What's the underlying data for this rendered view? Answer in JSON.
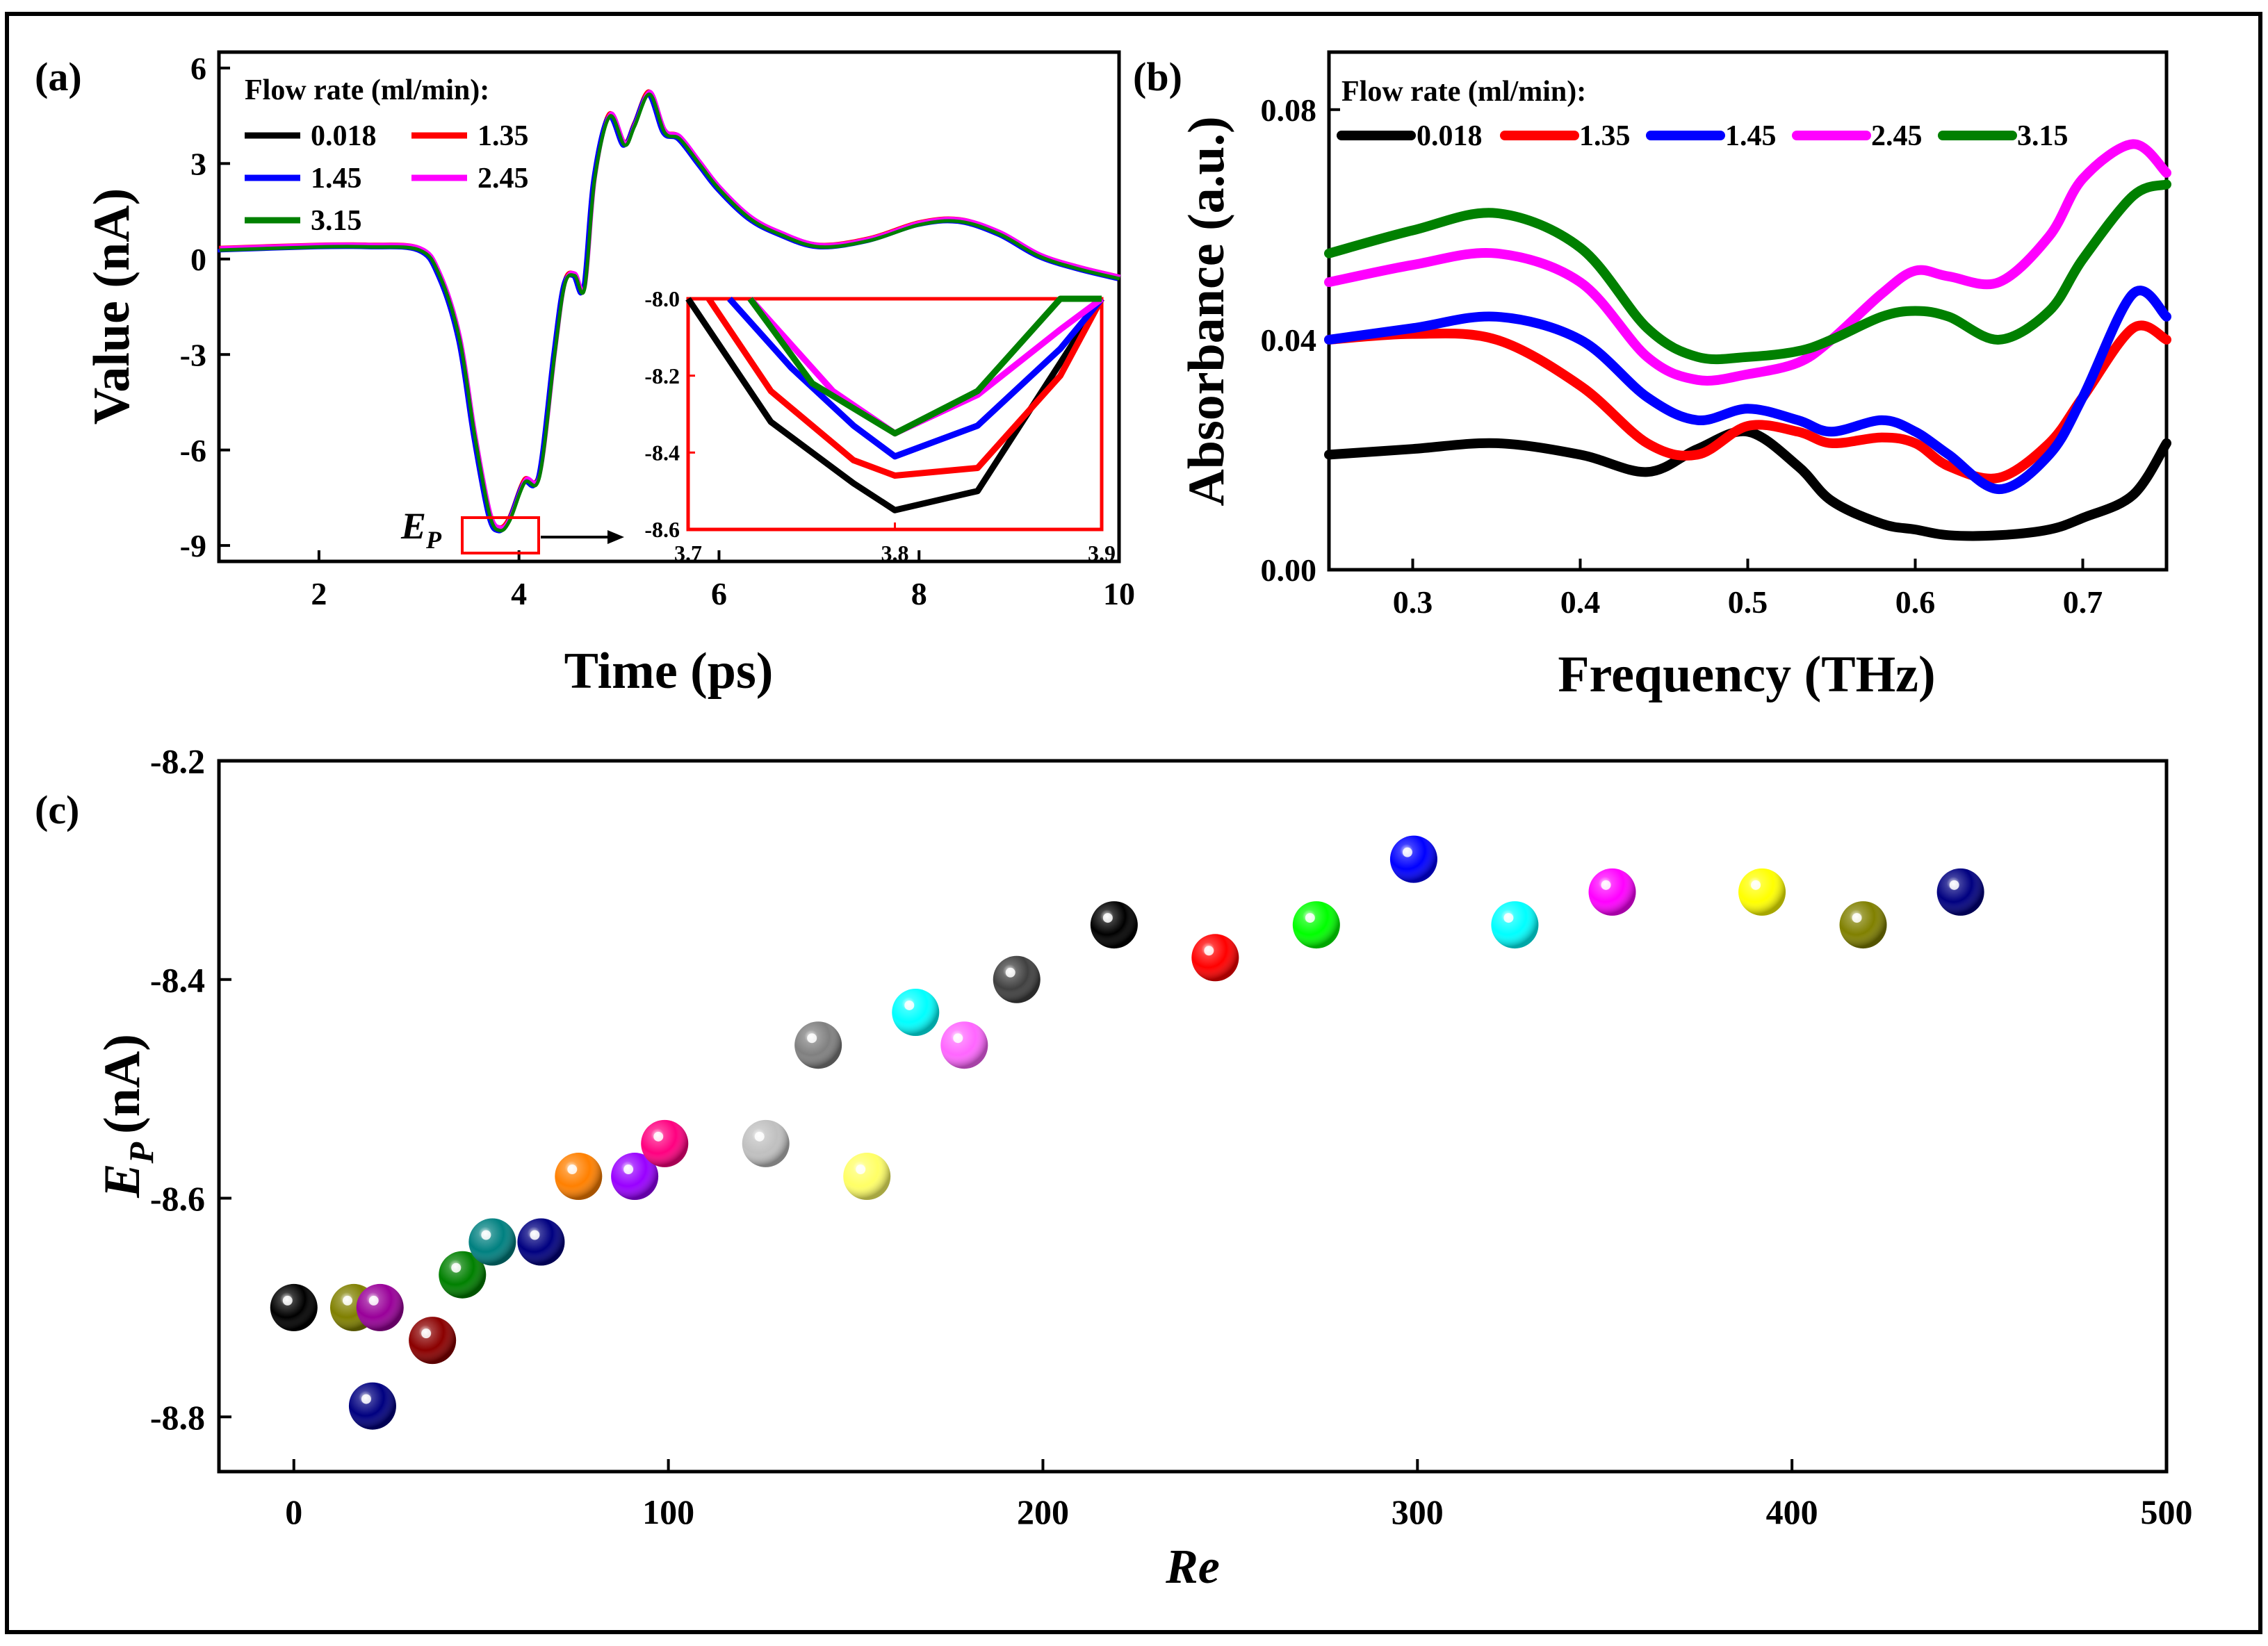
{
  "chart_data": [
    {
      "panel": "(a)",
      "type": "line",
      "xlabel": "Time (ps)",
      "ylabel": "Value (nA)",
      "xlim": [
        1,
        10
      ],
      "ylim": [
        -9.5,
        6.5
      ],
      "xticks": [
        2,
        4,
        6,
        8,
        10
      ],
      "yticks": [
        6,
        3,
        0,
        -3,
        -6,
        -9
      ],
      "legend_title": "Flow rate (ml/min):",
      "series": [
        {
          "name": "0.018",
          "color": "#000000"
        },
        {
          "name": "1.35",
          "color": "#ff0000"
        },
        {
          "name": "1.45",
          "color": "#0000ff"
        },
        {
          "name": "2.45",
          "color": "#ff00ff"
        },
        {
          "name": "3.15",
          "color": "#008000"
        }
      ],
      "x": [
        1.0,
        2.0,
        2.5,
        3.0,
        3.2,
        3.4,
        3.55,
        3.7,
        3.8,
        3.9,
        4.05,
        4.2,
        4.35,
        4.45,
        4.55,
        4.65,
        4.75,
        4.9,
        5.05,
        5.15,
        5.3,
        5.45,
        5.6,
        5.8,
        6.0,
        6.3,
        6.6,
        7.0,
        7.5,
        8.0,
        8.4,
        8.8,
        9.2,
        9.6,
        10.0
      ],
      "y": [
        0.3,
        0.4,
        0.4,
        0.3,
        -0.5,
        -2.5,
        -5.5,
        -8.0,
        -8.5,
        -8.2,
        -7.0,
        -6.8,
        -3.0,
        -0.8,
        -0.5,
        -0.9,
        2.5,
        4.5,
        3.6,
        4.2,
        5.2,
        4.0,
        3.8,
        3.0,
        2.2,
        1.3,
        0.8,
        0.4,
        0.6,
        1.1,
        1.2,
        0.8,
        0.1,
        -0.3,
        -0.6
      ],
      "annotation": "E",
      "annotation_sub": "P",
      "inset": {
        "xlim": [
          3.7,
          3.9
        ],
        "ylim": [
          -8.6,
          -8.0
        ],
        "xticks": [
          3.7,
          3.8,
          3.9
        ],
        "yticks": [
          -8.0,
          -8.2,
          -8.4,
          -8.6
        ],
        "series": [
          {
            "name": "0.018",
            "x": [
              3.7,
              3.74,
              3.78,
              3.8,
              3.84,
              3.87,
              3.9
            ],
            "y": [
              -8.0,
              -8.32,
              -8.48,
              -8.55,
              -8.5,
              -8.25,
              -8.0
            ]
          },
          {
            "name": "1.35",
            "x": [
              3.71,
              3.74,
              3.78,
              3.8,
              3.84,
              3.88,
              3.9
            ],
            "y": [
              -8.0,
              -8.24,
              -8.42,
              -8.46,
              -8.44,
              -8.2,
              -8.0
            ]
          },
          {
            "name": "1.45",
            "x": [
              3.72,
              3.75,
              3.78,
              3.8,
              3.84,
              3.88,
              3.9
            ],
            "y": [
              -8.0,
              -8.18,
              -8.33,
              -8.41,
              -8.33,
              -8.13,
              -8.0
            ]
          },
          {
            "name": "2.45",
            "x": [
              3.73,
              3.75,
              3.77,
              3.8,
              3.84,
              3.88,
              3.9
            ],
            "y": [
              -8.0,
              -8.12,
              -8.24,
              -8.35,
              -8.25,
              -8.08,
              -8.0
            ]
          },
          {
            "name": "3.15",
            "x": [
              3.73,
              3.76,
              3.8,
              3.84,
              3.88,
              3.9
            ],
            "y": [
              -8.0,
              -8.22,
              -8.35,
              -8.24,
              -8.0,
              -8.0
            ]
          }
        ]
      }
    },
    {
      "panel": "(b)",
      "type": "line",
      "xlabel": "Frequency (THz)",
      "ylabel": "Absorbance (a.u.)",
      "xlim": [
        0.25,
        0.75
      ],
      "ylim": [
        0.0,
        0.09
      ],
      "xticks": [
        0.3,
        0.4,
        0.5,
        0.6,
        0.7
      ],
      "yticks": [
        0.0,
        0.04,
        0.08
      ],
      "ytick_labels": [
        "0.00",
        "0.04",
        "0.08"
      ],
      "legend_title": "Flow rate (ml/min):",
      "x": [
        0.25,
        0.3,
        0.35,
        0.4,
        0.44,
        0.47,
        0.5,
        0.53,
        0.55,
        0.58,
        0.6,
        0.62,
        0.65,
        0.68,
        0.7,
        0.73,
        0.75
      ],
      "series": [
        {
          "name": "0.018",
          "color": "#000000",
          "values": [
            0.02,
            0.021,
            0.022,
            0.02,
            0.017,
            0.021,
            0.024,
            0.018,
            0.012,
            0.008,
            0.007,
            0.006,
            0.006,
            0.007,
            0.009,
            0.013,
            0.022
          ]
        },
        {
          "name": "1.35",
          "color": "#ff0000",
          "values": [
            0.04,
            0.041,
            0.04,
            0.032,
            0.022,
            0.02,
            0.025,
            0.024,
            0.022,
            0.023,
            0.022,
            0.018,
            0.016,
            0.022,
            0.03,
            0.042,
            0.04
          ]
        },
        {
          "name": "1.45",
          "color": "#0000ff",
          "values": [
            0.04,
            0.042,
            0.044,
            0.04,
            0.03,
            0.026,
            0.028,
            0.026,
            0.024,
            0.026,
            0.024,
            0.02,
            0.014,
            0.02,
            0.03,
            0.048,
            0.044
          ]
        },
        {
          "name": "2.45",
          "color": "#ff00ff",
          "values": [
            0.05,
            0.053,
            0.055,
            0.05,
            0.037,
            0.033,
            0.034,
            0.036,
            0.04,
            0.048,
            0.052,
            0.051,
            0.05,
            0.058,
            0.068,
            0.074,
            0.069
          ]
        },
        {
          "name": "3.15",
          "color": "#008000",
          "values": [
            0.055,
            0.059,
            0.062,
            0.056,
            0.042,
            0.037,
            0.037,
            0.038,
            0.04,
            0.044,
            0.045,
            0.044,
            0.04,
            0.045,
            0.054,
            0.065,
            0.067
          ]
        }
      ]
    },
    {
      "panel": "(c)",
      "type": "scatter",
      "xlabel": "Re",
      "ylabel": "E",
      "ylabel_sub": "P",
      "ylabel_unit": "(nA)",
      "xlim": [
        -20,
        500
      ],
      "ylim": [
        -8.85,
        -8.2
      ],
      "xticks": [
        0,
        100,
        200,
        300,
        400,
        500
      ],
      "yticks": [
        -8.2,
        -8.4,
        -8.6,
        -8.8
      ],
      "points": [
        {
          "x": 0,
          "y": -8.7,
          "color": "#000000"
        },
        {
          "x": 16,
          "y": -8.7,
          "color": "#808000"
        },
        {
          "x": 23,
          "y": -8.7,
          "color": "#990099"
        },
        {
          "x": 21,
          "y": -8.79,
          "color": "#000080"
        },
        {
          "x": 37,
          "y": -8.73,
          "color": "#8b0000"
        },
        {
          "x": 45,
          "y": -8.67,
          "color": "#008000"
        },
        {
          "x": 53,
          "y": -8.64,
          "color": "#008080"
        },
        {
          "x": 66,
          "y": -8.64,
          "color": "#000080"
        },
        {
          "x": 76,
          "y": -8.58,
          "color": "#ff8000"
        },
        {
          "x": 91,
          "y": -8.58,
          "color": "#9900ff"
        },
        {
          "x": 99,
          "y": -8.55,
          "color": "#ff0080"
        },
        {
          "x": 126,
          "y": -8.55,
          "color": "#c0c0c0"
        },
        {
          "x": 140,
          "y": -8.46,
          "color": "#808080"
        },
        {
          "x": 153,
          "y": -8.58,
          "color": "#ffff66"
        },
        {
          "x": 166,
          "y": -8.43,
          "color": "#00ffff"
        },
        {
          "x": 179,
          "y": -8.46,
          "color": "#ff66ff"
        },
        {
          "x": 193,
          "y": -8.4,
          "color": "#404040"
        },
        {
          "x": 219,
          "y": -8.35,
          "color": "#000000"
        },
        {
          "x": 246,
          "y": -8.38,
          "color": "#ff0000"
        },
        {
          "x": 273,
          "y": -8.35,
          "color": "#00ff00"
        },
        {
          "x": 299,
          "y": -8.29,
          "color": "#0000ff"
        },
        {
          "x": 326,
          "y": -8.35,
          "color": "#00ffff"
        },
        {
          "x": 352,
          "y": -8.32,
          "color": "#ff00ff"
        },
        {
          "x": 392,
          "y": -8.32,
          "color": "#ffff00"
        },
        {
          "x": 419,
          "y": -8.35,
          "color": "#808000"
        },
        {
          "x": 445,
          "y": -8.32,
          "color": "#000080"
        }
      ]
    }
  ]
}
